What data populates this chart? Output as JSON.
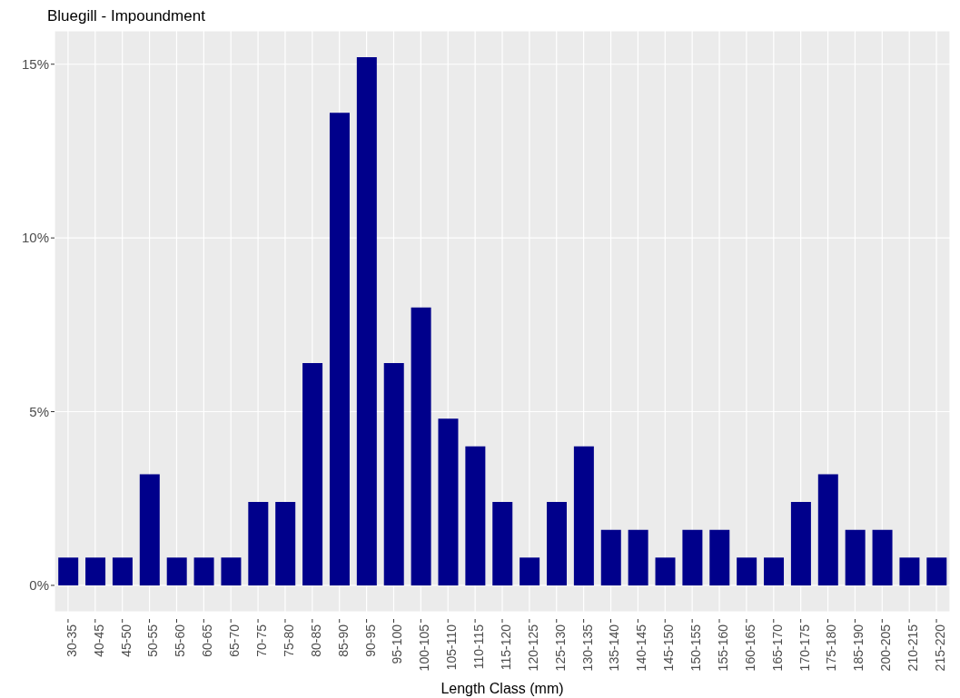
{
  "chart_data": {
    "type": "bar",
    "title": "Bluegill - Impoundment",
    "xlabel": "Length Class (mm)",
    "categories": [
      "30-35",
      "40-45",
      "45-50",
      "50-55",
      "55-60",
      "60-65",
      "65-70",
      "70-75",
      "75-80",
      "80-85",
      "85-90",
      "90-95",
      "95-100",
      "100-105",
      "105-110",
      "110-115",
      "115-120",
      "120-125",
      "125-130",
      "130-135",
      "135-140",
      "140-145",
      "145-150",
      "150-155",
      "155-160",
      "160-165",
      "165-170",
      "170-175",
      "175-180",
      "185-190",
      "200-205",
      "210-215",
      "215-220"
    ],
    "values": [
      0.8,
      0.8,
      0.8,
      3.2,
      0.8,
      0.8,
      0.8,
      2.4,
      2.4,
      6.4,
      13.6,
      15.2,
      6.4,
      8.0,
      4.8,
      4.0,
      2.4,
      0.8,
      2.4,
      4.0,
      1.6,
      1.6,
      0.8,
      1.6,
      1.6,
      0.8,
      0.8,
      2.4,
      3.2,
      1.6,
      1.6,
      0.8,
      0.8
    ],
    "color": "#00008b",
    "ylim": [
      -0.76,
      15.96
    ],
    "yticks": [
      {
        "value": 0,
        "label": "0%"
      },
      {
        "value": 5,
        "label": "5%"
      },
      {
        "value": 10,
        "label": "10%"
      },
      {
        "value": 15,
        "label": "15%"
      }
    ],
    "grid": true
  }
}
